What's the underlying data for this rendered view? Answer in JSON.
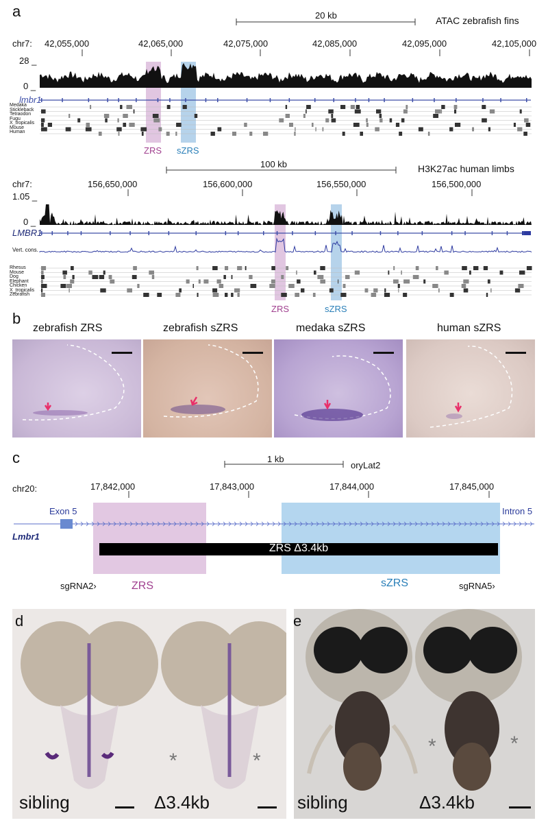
{
  "panels": {
    "a": "a",
    "b": "b",
    "c": "c",
    "d": "d",
    "e": "e"
  },
  "panel_a_top": {
    "track_title": "ATAC zebrafish fins",
    "scale_label": "20 kb",
    "chrom": "chr7:",
    "positions": [
      "42,055,000",
      "42,065,000",
      "42,075,000",
      "42,085,000",
      "42,095,000",
      "42,105,000"
    ],
    "y_max": "28 _",
    "y_min": "0 _",
    "gene": "lmbr1",
    "species": [
      "Medaka",
      "Stickleback",
      "Tetraodon",
      "Fugu",
      "X_tropicalis",
      "Mouse",
      "Human"
    ],
    "zrs_label": "ZRS",
    "szrs_label": "sZRS"
  },
  "panel_a_bottom": {
    "track_title": "H3K27ac human limbs",
    "scale_label": "100 kb",
    "chrom": "chr7:",
    "positions": [
      "156,650,000",
      "156,600,000",
      "156,550,000",
      "156,500,000"
    ],
    "y_max": "1.05 _",
    "y_min": "0 _",
    "gene": "LMBR1",
    "cons_label": "Vert. cons.",
    "species": [
      "Rhesus",
      "Mouse",
      "Dog",
      "Elephant",
      "Chicken",
      "X_tropicalis",
      "Zebrafish"
    ],
    "zrs_label": "ZRS",
    "szrs_label": "sZRS"
  },
  "panel_b": {
    "titles": [
      "zebrafish ZRS",
      "zebrafish sZRS",
      "medaka sZRS",
      "human sZRS"
    ]
  },
  "panel_c": {
    "scale_label": "1 kb",
    "assembly": "oryLat2",
    "chrom": "chr20:",
    "positions": [
      "17,842,000",
      "17,843,000",
      "17,844,000",
      "17,845,000"
    ],
    "exon_label": "Exon 5",
    "intron_label": "Intron 5",
    "gene": "Lmbr1",
    "deletion_label": "ZRS Δ3.4kb",
    "sgrna_left": "sgRNA2",
    "sgrna_right": "sgRNA5",
    "zrs_label": "ZRS",
    "szrs_label": "sZRS"
  },
  "panel_d": {
    "left_label": "sibling",
    "right_label": "Δ3.4kb",
    "asterisk": "*"
  },
  "panel_e": {
    "left_label": "sibling",
    "right_label": "Δ3.4kb",
    "asterisk": "*"
  },
  "colors": {
    "zrs_highlight": "#d9b8d9",
    "szrs_highlight": "#a9cbe8",
    "zrs_text": "#a0408f",
    "szrs_text": "#2a7fb8",
    "gene_blue": "#3d4ea8",
    "cons_blue": "#2d3aa0"
  }
}
